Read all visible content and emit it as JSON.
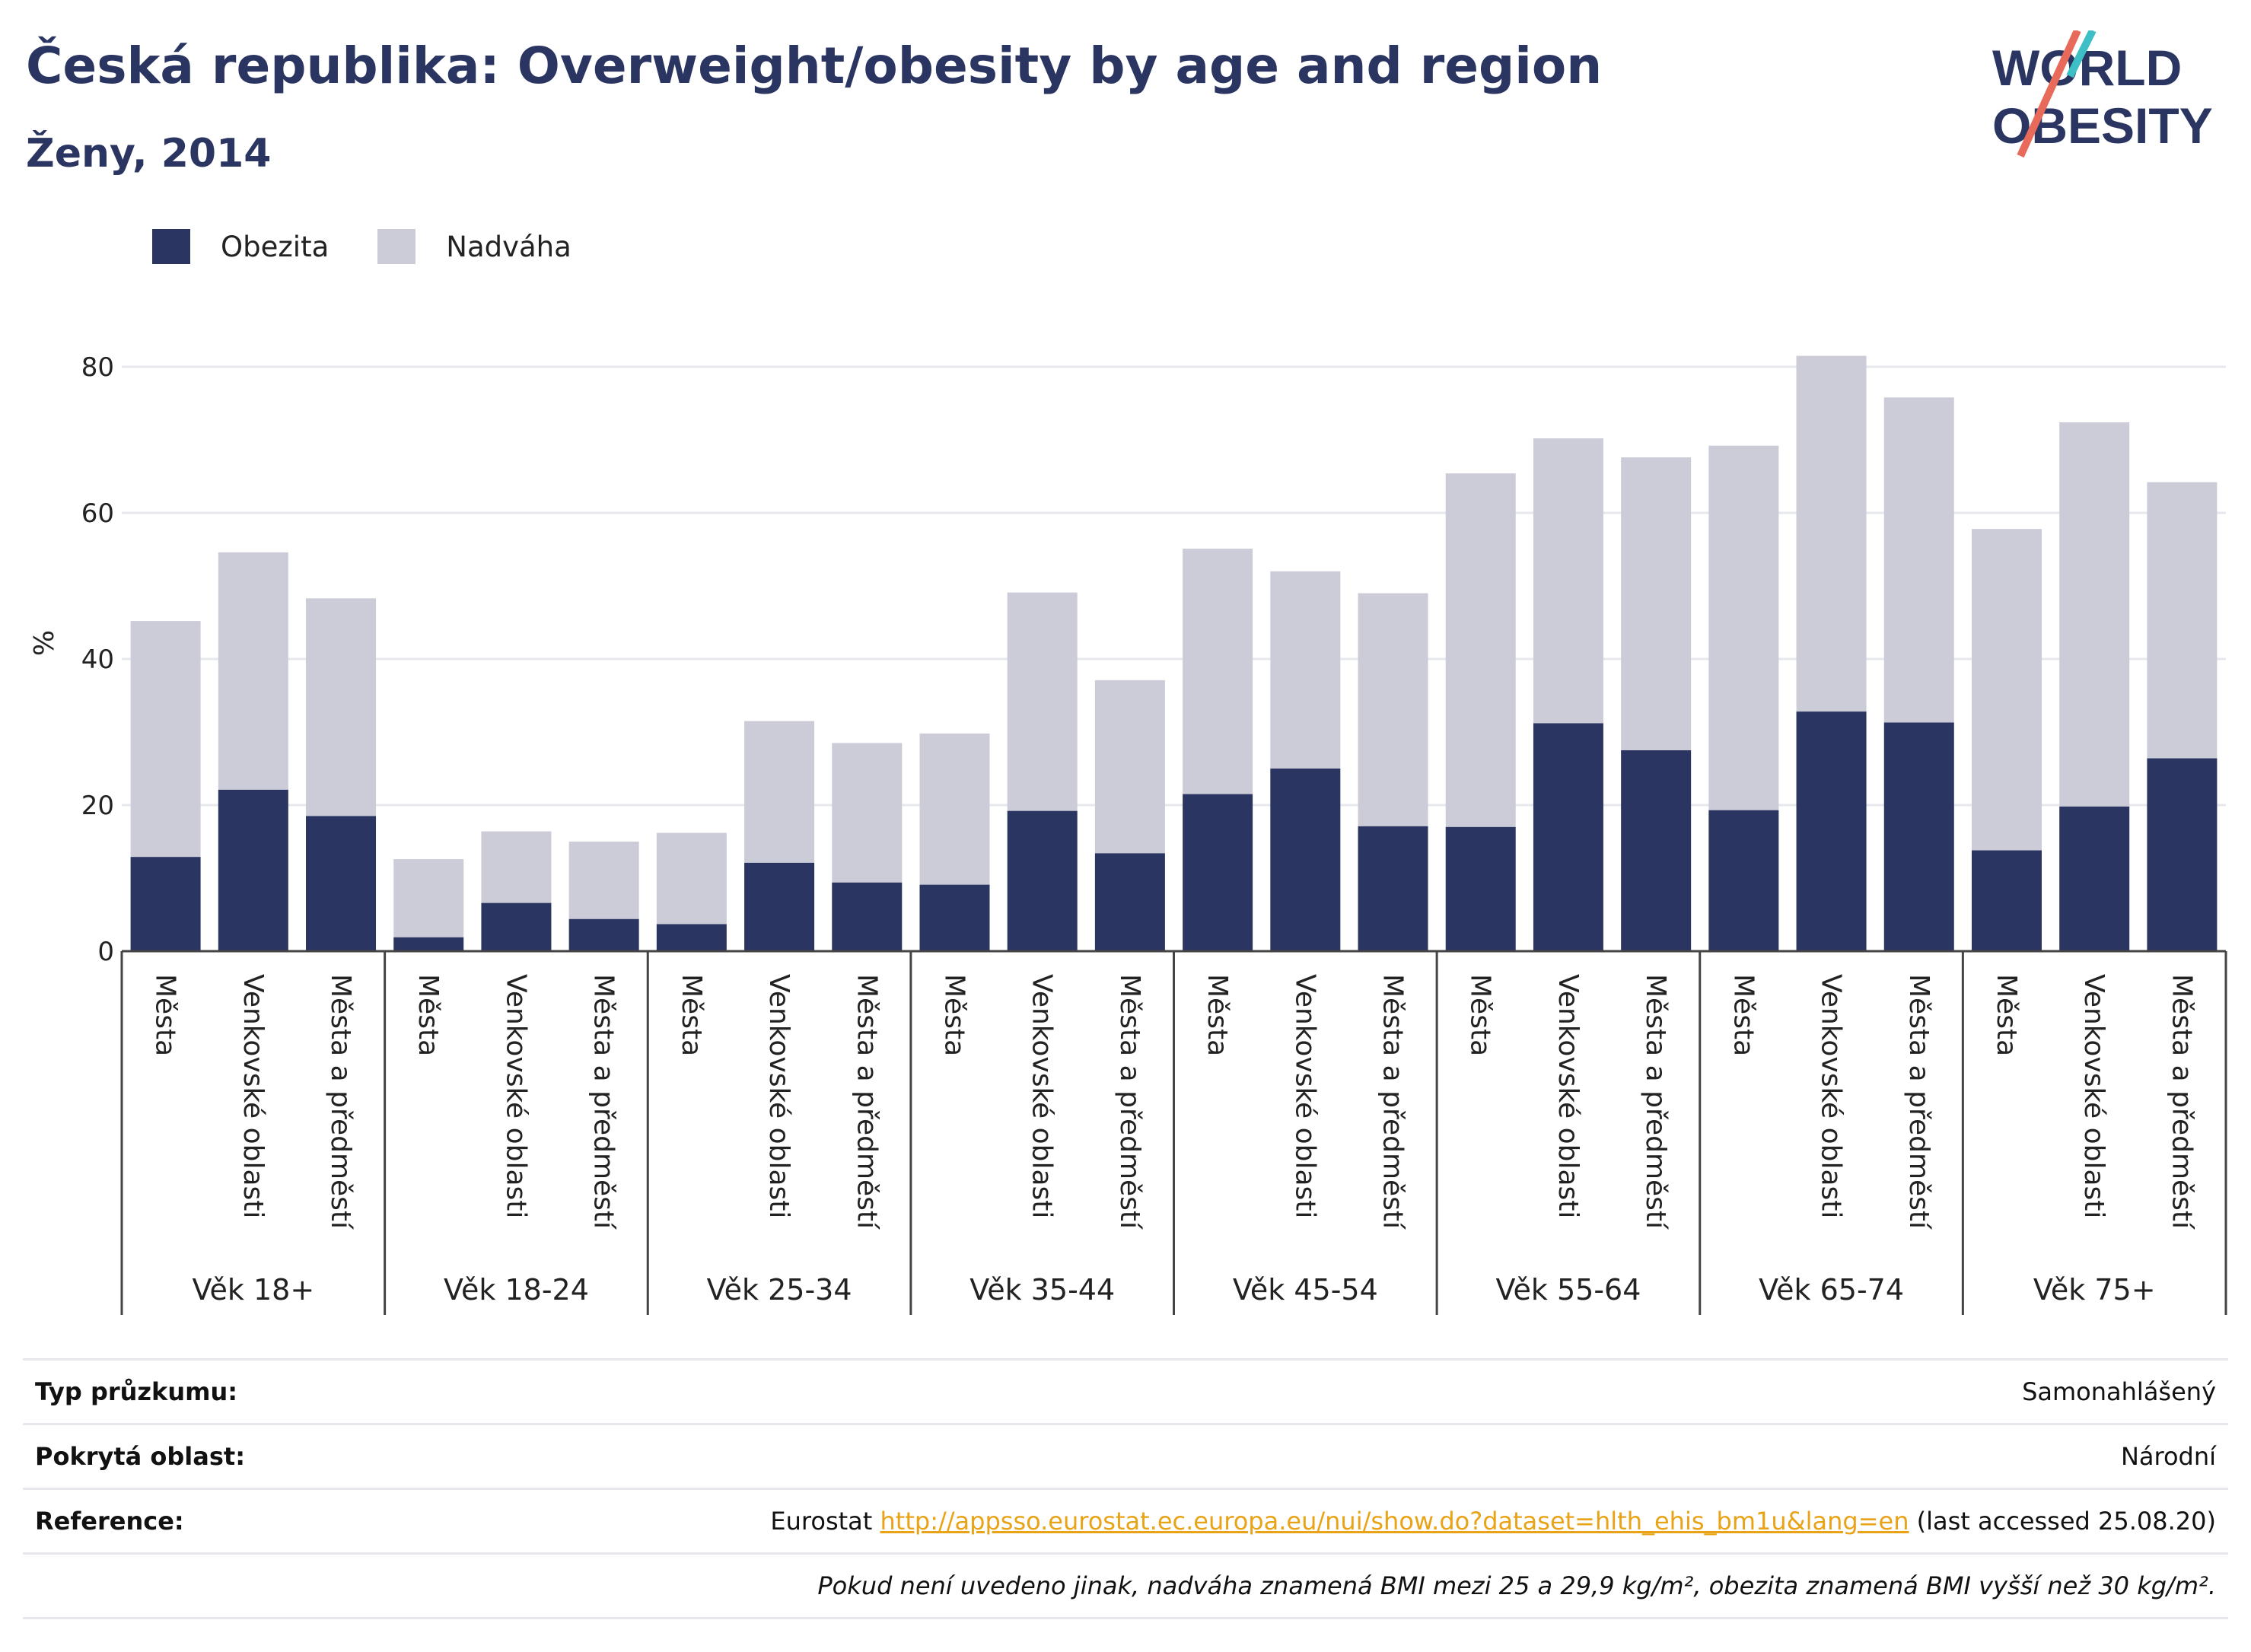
{
  "title": "Česká republika: Overweight/obesity by age and region",
  "subtitle": "Ženy, 2014",
  "logo": {
    "line1": "WORLD",
    "line2": "OBESITY"
  },
  "colors": {
    "obesity": "#2b3562",
    "overweight": "#cbccd8",
    "title": "#2b3562",
    "link": "#e8a317"
  },
  "chart_data": {
    "type": "bar",
    "stacked": true,
    "ylabel": "%",
    "ylim": [
      0,
      85
    ],
    "yticks": [
      0,
      20,
      40,
      60,
      80
    ],
    "grid": true,
    "legend_position": "top-left",
    "legend": [
      "Obezita",
      "Nadváha"
    ],
    "groups": [
      {
        "label": "Věk 18+",
        "categories": [
          "Města",
          "Venkovské oblasti",
          "Města a předměstí"
        ],
        "obezita": [
          12.9,
          22.1,
          18.5
        ],
        "total": [
          45.2,
          54.6,
          48.3
        ]
      },
      {
        "label": "Věk 18-24",
        "categories": [
          "Města",
          "Venkovské oblasti",
          "Města a předměstí"
        ],
        "obezita": [
          1.9,
          6.6,
          4.4
        ],
        "total": [
          12.6,
          16.4,
          15.0
        ]
      },
      {
        "label": "Věk 25-34",
        "categories": [
          "Města",
          "Venkovské oblasti",
          "Města a předměstí"
        ],
        "obezita": [
          3.7,
          12.1,
          9.4
        ],
        "total": [
          16.2,
          31.5,
          28.5
        ]
      },
      {
        "label": "Věk 35-44",
        "categories": [
          "Města",
          "Venkovské oblasti",
          "Města a předměstí"
        ],
        "obezita": [
          9.1,
          19.2,
          13.4
        ],
        "total": [
          29.8,
          49.1,
          37.1
        ]
      },
      {
        "label": "Věk 45-54",
        "categories": [
          "Města",
          "Venkovské oblasti",
          "Města a předměstí"
        ],
        "obezita": [
          21.5,
          25.0,
          17.1
        ],
        "total": [
          55.1,
          52.0,
          49.0
        ]
      },
      {
        "label": "Věk 55-64",
        "categories": [
          "Města",
          "Venkovské oblasti",
          "Města a předměstí"
        ],
        "obezita": [
          17.0,
          31.2,
          27.5
        ],
        "total": [
          65.4,
          70.2,
          67.6
        ]
      },
      {
        "label": "Věk 65-74",
        "categories": [
          "Města",
          "Venkovské oblasti",
          "Města a předměstí"
        ],
        "obezita": [
          19.3,
          32.8,
          31.3
        ],
        "total": [
          69.2,
          81.5,
          75.8
        ]
      },
      {
        "label": "Věk 75+",
        "categories": [
          "Města",
          "Venkovské oblasti",
          "Města a předměstí"
        ],
        "obezita": [
          13.8,
          19.8,
          26.4
        ],
        "total": [
          57.8,
          72.4,
          64.2
        ]
      }
    ]
  },
  "info": {
    "survey_label": "Typ průzkumu:",
    "survey_value": "Samonahlášený",
    "area_label": "Pokrytá oblast:",
    "area_value": "Národní",
    "ref_label": "Reference:",
    "ref_source": "Eurostat",
    "ref_url": "http://appsso.eurostat.ec.europa.eu/nui/show.do?dataset=hlth_ehis_bm1u&lang=en",
    "ref_accessed": "(last accessed 25.08.20)",
    "note": "Pokud není uvedeno jinak, nadváha znamená BMI mezi 25 a 29,9 kg/m², obezita znamená BMI vyšší než 30 kg/m²."
  }
}
